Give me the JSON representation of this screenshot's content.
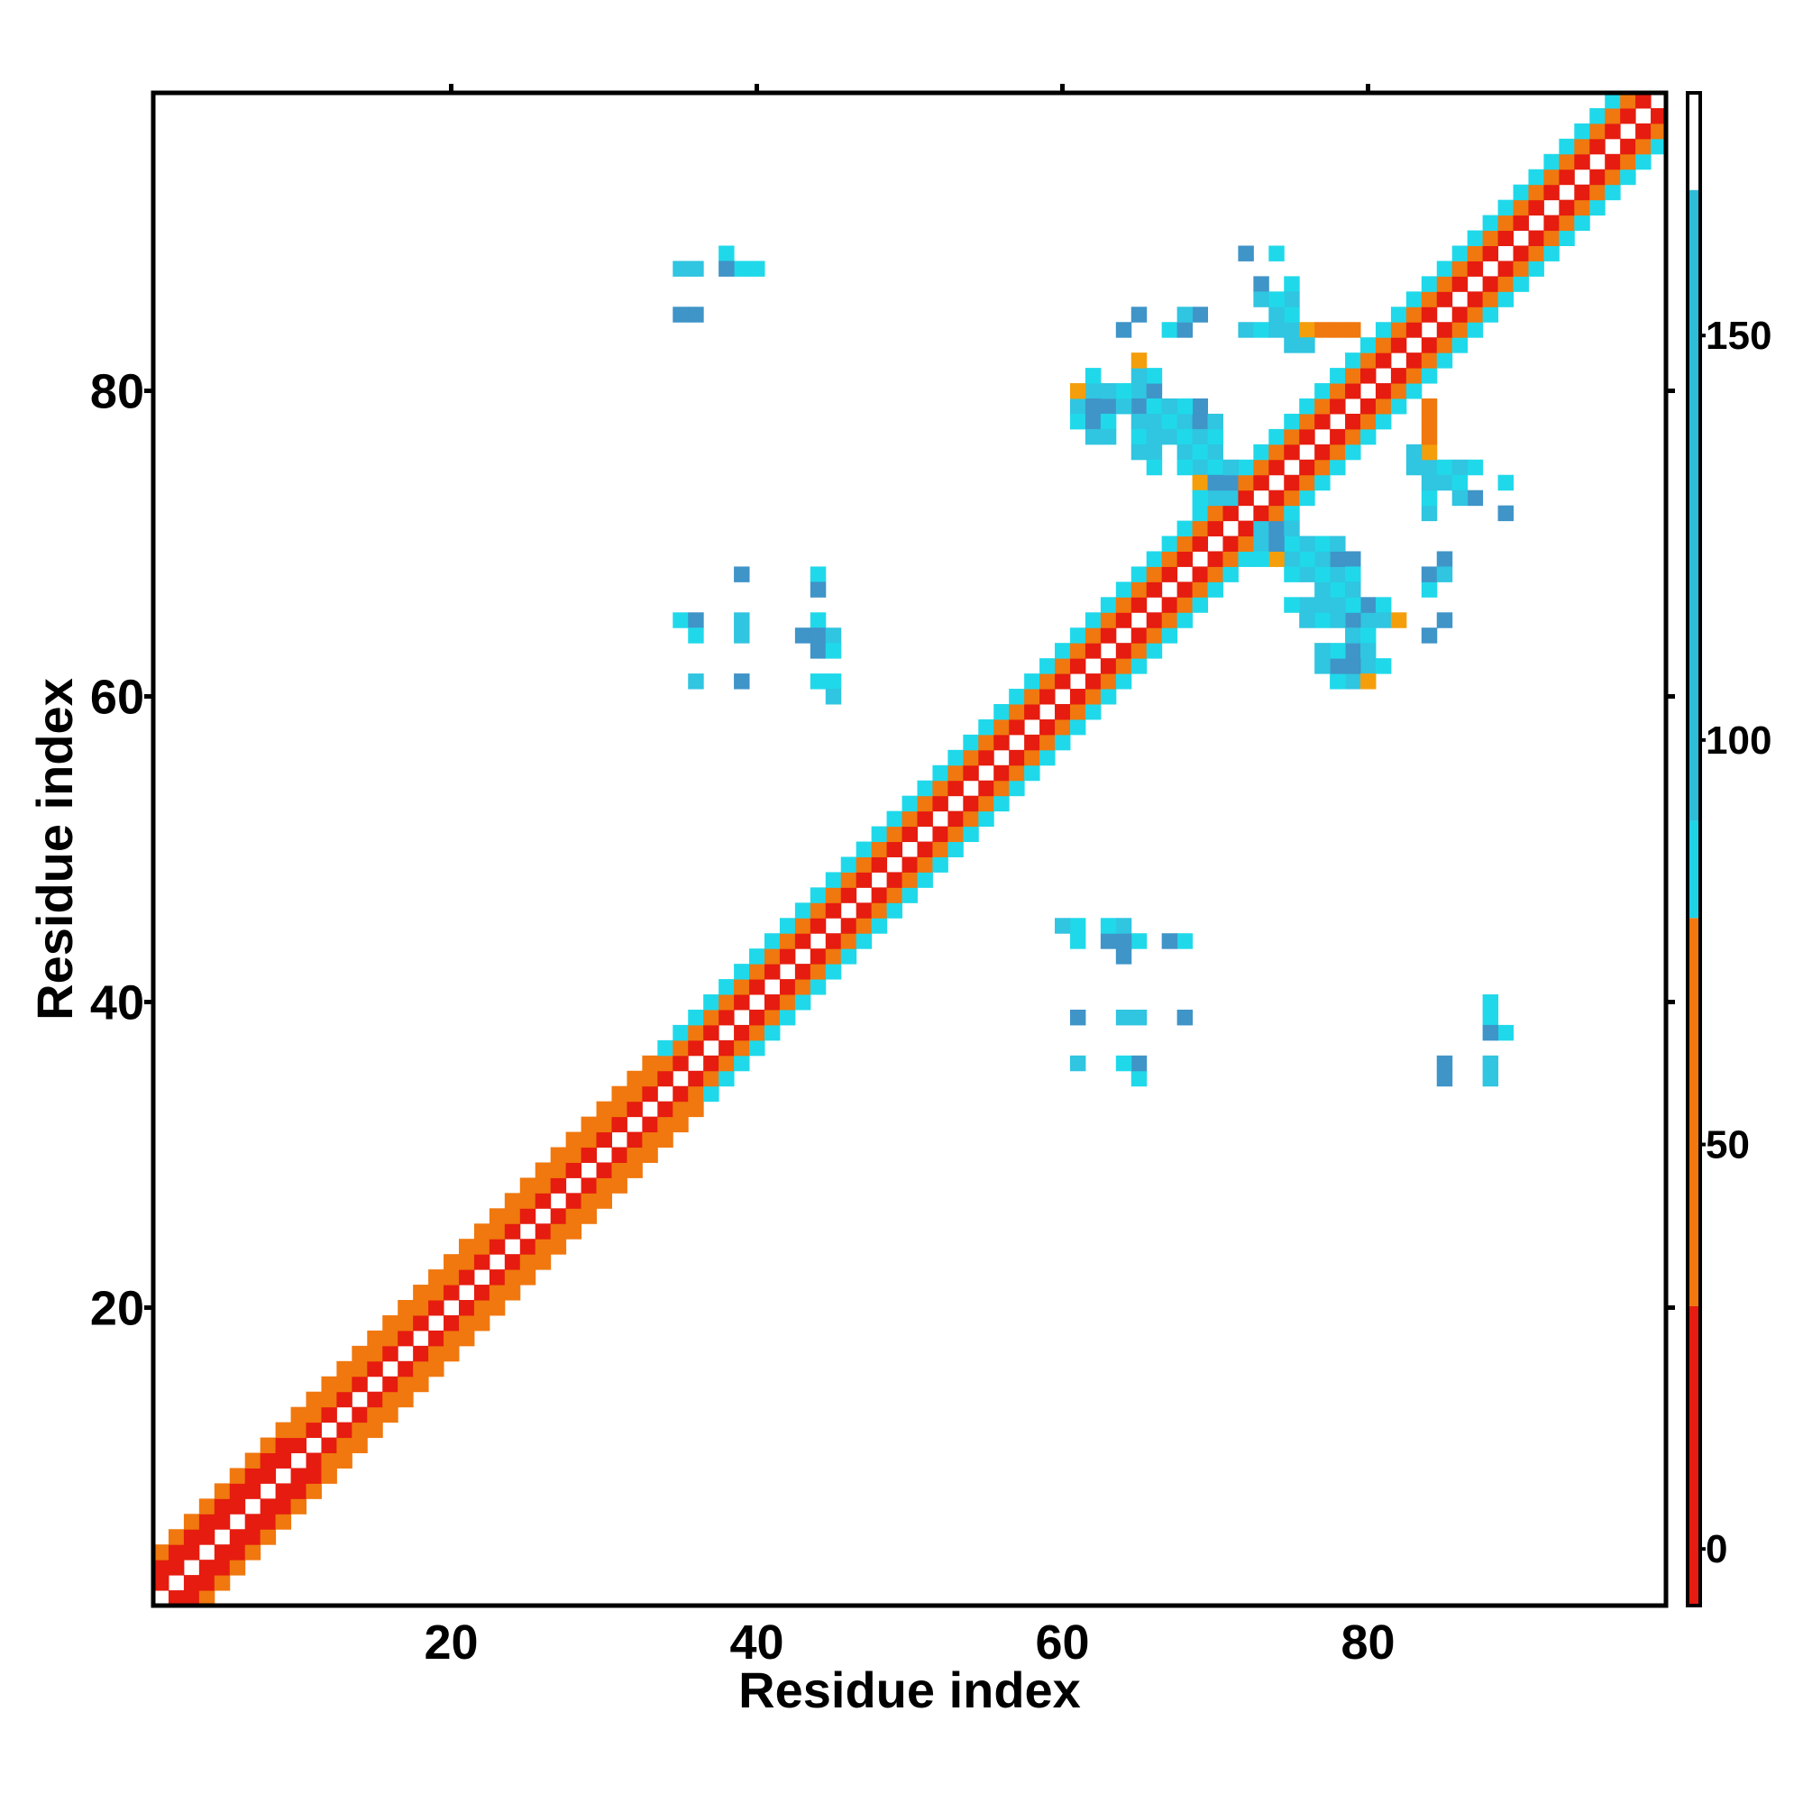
{
  "chart_data": {
    "type": "heatmap",
    "xlabel": "Residue index",
    "ylabel": "Residue index",
    "xlim": [
      0.5,
      99.5
    ],
    "ylim": [
      0.5,
      99.5
    ],
    "xticks": [
      20,
      40,
      60,
      80
    ],
    "yticks": [
      20,
      40,
      60,
      80
    ],
    "colorbar": {
      "range": [
        -7,
        180
      ],
      "ticks": [
        0,
        50,
        100,
        150
      ],
      "bands": [
        {
          "from": -7,
          "to": 30,
          "color": "#e51c0f"
        },
        {
          "from": 30,
          "to": 78,
          "color": "#f0780f"
        },
        {
          "from": 78,
          "to": 90,
          "color": "#1fd3e6"
        },
        {
          "from": 90,
          "to": 168,
          "color": "#2fbcd9"
        },
        {
          "from": 168,
          "to": 180,
          "color": "#ffffff"
        }
      ]
    },
    "colors": {
      "red": "#e51c0f",
      "orange": "#f0780f",
      "amber": "#f59e0b",
      "cyan": "#1fd9ea",
      "teal": "#30c5e0",
      "blue": "#3f94c8"
    },
    "diagonal": {
      "start": 1,
      "end": 99,
      "near_band_value": 20,
      "far_band_value": 45,
      "mid_band_value": 100
    },
    "cells": [
      [
        36,
        88,
        110
      ],
      [
        38,
        89,
        105
      ],
      [
        39,
        88,
        150
      ],
      [
        40,
        88,
        105
      ],
      [
        36,
        85,
        150
      ],
      [
        73,
        87,
        160
      ],
      [
        75,
        87,
        105
      ],
      [
        64,
        84,
        160
      ],
      [
        67,
        84,
        105
      ],
      [
        68,
        84,
        150
      ],
      [
        72,
        84,
        110
      ],
      [
        73,
        84,
        105
      ],
      [
        74,
        84,
        120
      ],
      [
        75,
        84,
        110
      ],
      [
        76,
        84,
        60
      ],
      [
        77,
        84,
        45
      ],
      [
        78,
        84,
        30
      ],
      [
        79,
        84,
        45
      ],
      [
        75,
        83,
        110
      ],
      [
        76,
        83,
        130
      ],
      [
        62,
        80,
        110
      ],
      [
        65,
        80,
        45
      ],
      [
        66,
        80,
        105
      ],
      [
        61,
        79,
        60
      ],
      [
        62,
        79,
        105
      ],
      [
        63,
        79,
        110
      ],
      [
        65,
        79,
        120
      ],
      [
        66,
        79,
        110
      ],
      [
        61,
        78,
        105
      ],
      [
        62,
        78,
        110
      ],
      [
        63,
        78,
        105
      ],
      [
        65,
        78,
        120
      ],
      [
        66,
        78,
        110
      ],
      [
        67,
        78,
        105
      ],
      [
        68,
        78,
        105
      ],
      [
        69,
        78,
        150
      ],
      [
        63,
        77,
        105
      ],
      [
        65,
        77,
        110
      ],
      [
        66,
        77,
        120
      ],
      [
        67,
        77,
        105
      ],
      [
        68,
        77,
        150
      ],
      [
        69,
        77,
        130
      ],
      [
        70,
        77,
        150
      ],
      [
        65,
        76,
        110
      ],
      [
        66,
        76,
        105
      ],
      [
        68,
        76,
        110
      ],
      [
        69,
        76,
        105
      ],
      [
        70,
        76,
        140
      ],
      [
        66,
        75,
        105
      ],
      [
        69,
        75,
        105
      ],
      [
        70,
        75,
        150
      ],
      [
        71,
        75,
        130
      ],
      [
        69,
        74,
        110
      ],
      [
        70,
        74,
        105
      ],
      [
        71,
        74,
        150
      ],
      [
        70,
        73,
        105
      ],
      [
        71,
        73,
        110
      ],
      [
        85,
        75,
        105
      ],
      [
        86,
        75,
        110
      ],
      [
        89,
        74,
        105
      ],
      [
        85,
        74,
        110
      ],
      [
        86,
        74,
        105
      ],
      [
        86,
        73,
        120
      ],
      [
        89,
        72,
        150
      ],
      [
        73,
        70,
        110
      ],
      [
        74,
        70,
        150
      ],
      [
        75,
        70,
        105
      ],
      [
        76,
        70,
        110
      ],
      [
        77,
        70,
        105
      ],
      [
        78,
        70,
        120
      ],
      [
        73,
        69,
        105
      ],
      [
        74,
        69,
        60
      ],
      [
        75,
        69,
        110
      ],
      [
        76,
        69,
        105
      ],
      [
        77,
        69,
        110
      ],
      [
        78,
        69,
        150
      ],
      [
        79,
        69,
        160
      ],
      [
        75,
        68,
        105
      ],
      [
        76,
        68,
        120
      ],
      [
        77,
        68,
        105
      ],
      [
        78,
        68,
        110
      ],
      [
        79,
        68,
        105
      ],
      [
        77,
        67,
        110
      ],
      [
        78,
        67,
        105
      ],
      [
        79,
        67,
        120
      ],
      [
        75,
        66,
        105
      ],
      [
        76,
        66,
        110
      ],
      [
        78,
        66,
        110
      ],
      [
        79,
        66,
        105
      ],
      [
        80,
        66,
        150
      ],
      [
        81,
        66,
        105
      ],
      [
        77,
        65,
        105
      ],
      [
        78,
        65,
        110
      ],
      [
        79,
        65,
        150
      ],
      [
        80,
        65,
        130
      ],
      [
        81,
        65,
        110
      ],
      [
        82,
        65,
        60
      ],
      [
        79,
        64,
        110
      ],
      [
        80,
        64,
        105
      ],
      [
        77,
        63,
        130
      ],
      [
        78,
        63,
        105
      ],
      [
        79,
        63,
        150
      ],
      [
        80,
        63,
        110
      ],
      [
        77,
        62,
        110
      ],
      [
        78,
        62,
        150
      ],
      [
        79,
        62,
        160
      ],
      [
        80,
        62,
        110
      ],
      [
        81,
        62,
        105
      ],
      [
        79,
        61,
        110
      ],
      [
        80,
        61,
        60
      ],
      [
        85,
        69,
        150
      ],
      [
        85,
        68,
        110
      ],
      [
        85,
        65,
        150
      ],
      [
        39,
        68,
        160
      ],
      [
        44,
        68,
        150
      ],
      [
        44,
        67,
        160
      ],
      [
        35,
        65,
        110
      ],
      [
        36,
        65,
        105
      ],
      [
        39,
        65,
        110
      ],
      [
        44,
        65,
        105
      ],
      [
        36,
        64,
        130
      ],
      [
        39,
        64,
        150
      ],
      [
        43,
        64,
        130
      ],
      [
        44,
        64,
        150
      ],
      [
        45,
        64,
        110
      ],
      [
        44,
        63,
        160
      ],
      [
        36,
        61,
        150
      ],
      [
        39,
        61,
        160
      ],
      [
        44,
        61,
        105
      ],
      [
        45,
        61,
        110
      ],
      [
        45,
        60,
        105
      ],
      [
        60,
        45,
        110
      ],
      [
        61,
        45,
        105
      ],
      [
        63,
        45,
        105
      ],
      [
        64,
        45,
        110
      ],
      [
        61,
        44,
        105
      ],
      [
        63,
        44,
        150
      ],
      [
        64,
        44,
        160
      ],
      [
        65,
        44,
        105
      ],
      [
        67,
        44,
        150
      ],
      [
        68,
        44,
        105
      ],
      [
        64,
        43,
        150
      ],
      [
        61,
        39,
        150
      ],
      [
        64,
        39,
        110
      ],
      [
        65,
        39,
        120
      ],
      [
        68,
        39,
        150
      ],
      [
        61,
        36,
        110
      ],
      [
        64,
        36,
        105
      ],
      [
        65,
        36,
        150
      ],
      [
        65,
        35,
        105
      ],
      [
        88,
        39,
        105
      ],
      [
        88,
        38,
        150
      ],
      [
        89,
        38,
        105
      ],
      [
        85,
        35,
        150
      ],
      [
        88,
        35,
        110
      ]
    ]
  }
}
